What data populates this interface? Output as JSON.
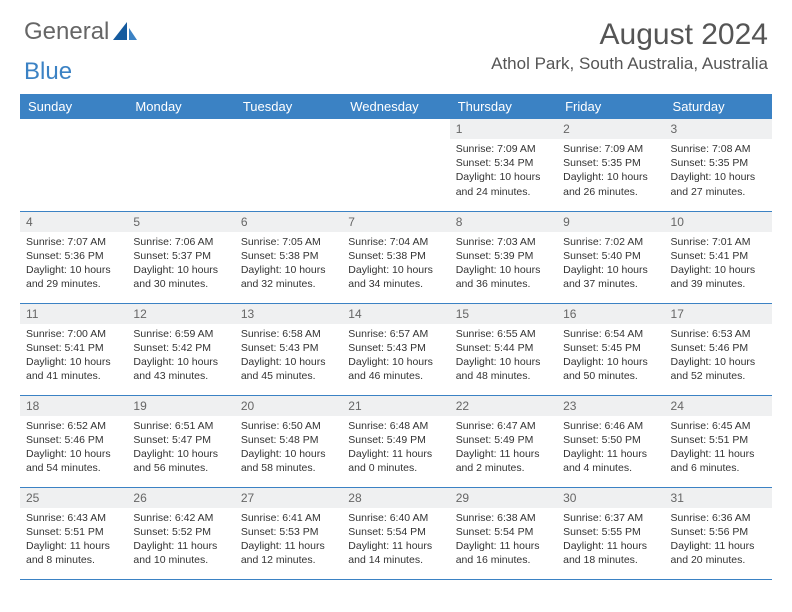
{
  "brand": {
    "part1": "General",
    "part2": "Blue"
  },
  "title": "August 2024",
  "location": "Athol Park, South Australia, Australia",
  "colors": {
    "header_bg": "#3b82c4",
    "header_text": "#ffffff",
    "daynum_bg": "#eff0f1",
    "border": "#3b82c4"
  },
  "weekdays": [
    "Sunday",
    "Monday",
    "Tuesday",
    "Wednesday",
    "Thursday",
    "Friday",
    "Saturday"
  ],
  "weeks": [
    [
      null,
      null,
      null,
      null,
      {
        "n": "1",
        "sr": "Sunrise: 7:09 AM",
        "ss": "Sunset: 5:34 PM",
        "dl": "Daylight: 10 hours and 24 minutes."
      },
      {
        "n": "2",
        "sr": "Sunrise: 7:09 AM",
        "ss": "Sunset: 5:35 PM",
        "dl": "Daylight: 10 hours and 26 minutes."
      },
      {
        "n": "3",
        "sr": "Sunrise: 7:08 AM",
        "ss": "Sunset: 5:35 PM",
        "dl": "Daylight: 10 hours and 27 minutes."
      }
    ],
    [
      {
        "n": "4",
        "sr": "Sunrise: 7:07 AM",
        "ss": "Sunset: 5:36 PM",
        "dl": "Daylight: 10 hours and 29 minutes."
      },
      {
        "n": "5",
        "sr": "Sunrise: 7:06 AM",
        "ss": "Sunset: 5:37 PM",
        "dl": "Daylight: 10 hours and 30 minutes."
      },
      {
        "n": "6",
        "sr": "Sunrise: 7:05 AM",
        "ss": "Sunset: 5:38 PM",
        "dl": "Daylight: 10 hours and 32 minutes."
      },
      {
        "n": "7",
        "sr": "Sunrise: 7:04 AM",
        "ss": "Sunset: 5:38 PM",
        "dl": "Daylight: 10 hours and 34 minutes."
      },
      {
        "n": "8",
        "sr": "Sunrise: 7:03 AM",
        "ss": "Sunset: 5:39 PM",
        "dl": "Daylight: 10 hours and 36 minutes."
      },
      {
        "n": "9",
        "sr": "Sunrise: 7:02 AM",
        "ss": "Sunset: 5:40 PM",
        "dl": "Daylight: 10 hours and 37 minutes."
      },
      {
        "n": "10",
        "sr": "Sunrise: 7:01 AM",
        "ss": "Sunset: 5:41 PM",
        "dl": "Daylight: 10 hours and 39 minutes."
      }
    ],
    [
      {
        "n": "11",
        "sr": "Sunrise: 7:00 AM",
        "ss": "Sunset: 5:41 PM",
        "dl": "Daylight: 10 hours and 41 minutes."
      },
      {
        "n": "12",
        "sr": "Sunrise: 6:59 AM",
        "ss": "Sunset: 5:42 PM",
        "dl": "Daylight: 10 hours and 43 minutes."
      },
      {
        "n": "13",
        "sr": "Sunrise: 6:58 AM",
        "ss": "Sunset: 5:43 PM",
        "dl": "Daylight: 10 hours and 45 minutes."
      },
      {
        "n": "14",
        "sr": "Sunrise: 6:57 AM",
        "ss": "Sunset: 5:43 PM",
        "dl": "Daylight: 10 hours and 46 minutes."
      },
      {
        "n": "15",
        "sr": "Sunrise: 6:55 AM",
        "ss": "Sunset: 5:44 PM",
        "dl": "Daylight: 10 hours and 48 minutes."
      },
      {
        "n": "16",
        "sr": "Sunrise: 6:54 AM",
        "ss": "Sunset: 5:45 PM",
        "dl": "Daylight: 10 hours and 50 minutes."
      },
      {
        "n": "17",
        "sr": "Sunrise: 6:53 AM",
        "ss": "Sunset: 5:46 PM",
        "dl": "Daylight: 10 hours and 52 minutes."
      }
    ],
    [
      {
        "n": "18",
        "sr": "Sunrise: 6:52 AM",
        "ss": "Sunset: 5:46 PM",
        "dl": "Daylight: 10 hours and 54 minutes."
      },
      {
        "n": "19",
        "sr": "Sunrise: 6:51 AM",
        "ss": "Sunset: 5:47 PM",
        "dl": "Daylight: 10 hours and 56 minutes."
      },
      {
        "n": "20",
        "sr": "Sunrise: 6:50 AM",
        "ss": "Sunset: 5:48 PM",
        "dl": "Daylight: 10 hours and 58 minutes."
      },
      {
        "n": "21",
        "sr": "Sunrise: 6:48 AM",
        "ss": "Sunset: 5:49 PM",
        "dl": "Daylight: 11 hours and 0 minutes."
      },
      {
        "n": "22",
        "sr": "Sunrise: 6:47 AM",
        "ss": "Sunset: 5:49 PM",
        "dl": "Daylight: 11 hours and 2 minutes."
      },
      {
        "n": "23",
        "sr": "Sunrise: 6:46 AM",
        "ss": "Sunset: 5:50 PM",
        "dl": "Daylight: 11 hours and 4 minutes."
      },
      {
        "n": "24",
        "sr": "Sunrise: 6:45 AM",
        "ss": "Sunset: 5:51 PM",
        "dl": "Daylight: 11 hours and 6 minutes."
      }
    ],
    [
      {
        "n": "25",
        "sr": "Sunrise: 6:43 AM",
        "ss": "Sunset: 5:51 PM",
        "dl": "Daylight: 11 hours and 8 minutes."
      },
      {
        "n": "26",
        "sr": "Sunrise: 6:42 AM",
        "ss": "Sunset: 5:52 PM",
        "dl": "Daylight: 11 hours and 10 minutes."
      },
      {
        "n": "27",
        "sr": "Sunrise: 6:41 AM",
        "ss": "Sunset: 5:53 PM",
        "dl": "Daylight: 11 hours and 12 minutes."
      },
      {
        "n": "28",
        "sr": "Sunrise: 6:40 AM",
        "ss": "Sunset: 5:54 PM",
        "dl": "Daylight: 11 hours and 14 minutes."
      },
      {
        "n": "29",
        "sr": "Sunrise: 6:38 AM",
        "ss": "Sunset: 5:54 PM",
        "dl": "Daylight: 11 hours and 16 minutes."
      },
      {
        "n": "30",
        "sr": "Sunrise: 6:37 AM",
        "ss": "Sunset: 5:55 PM",
        "dl": "Daylight: 11 hours and 18 minutes."
      },
      {
        "n": "31",
        "sr": "Sunrise: 6:36 AM",
        "ss": "Sunset: 5:56 PM",
        "dl": "Daylight: 11 hours and 20 minutes."
      }
    ]
  ]
}
